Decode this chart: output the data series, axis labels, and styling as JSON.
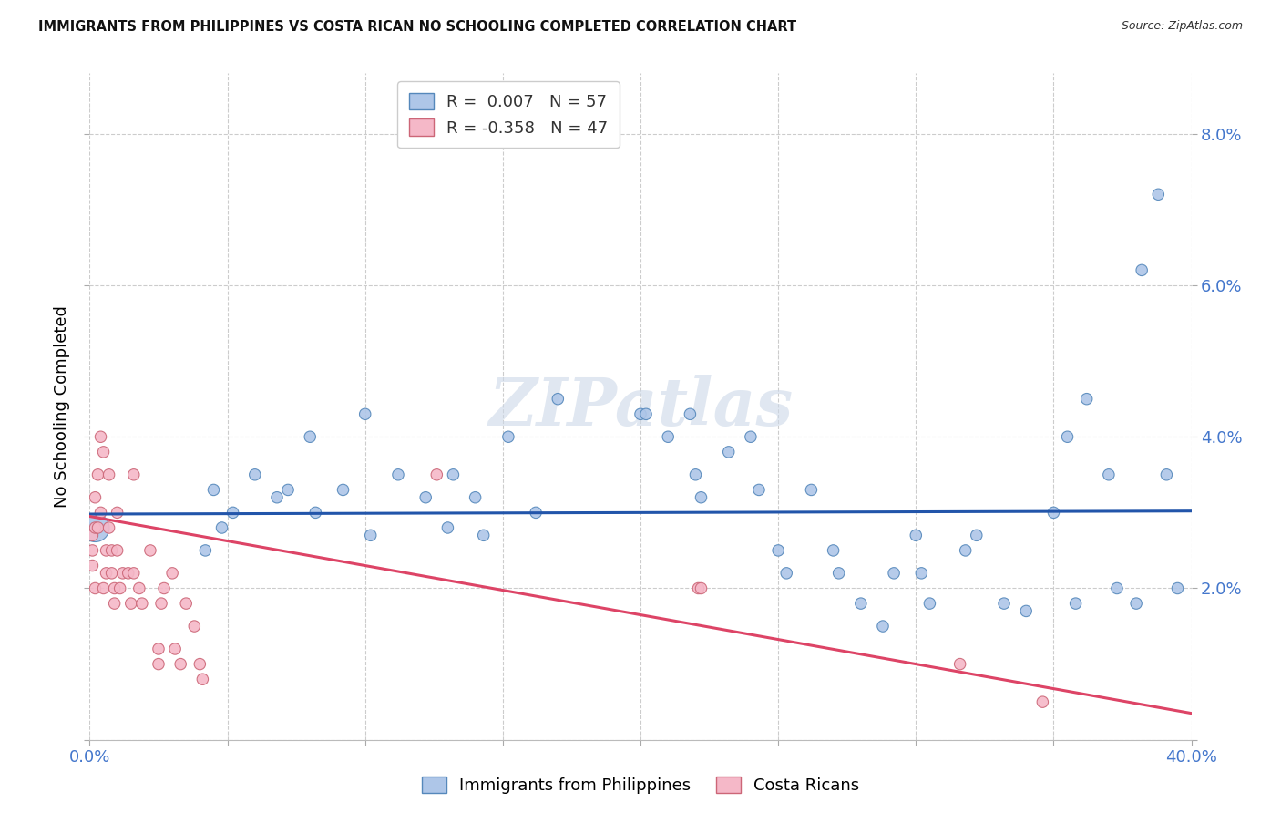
{
  "title": "IMMIGRANTS FROM PHILIPPINES VS COSTA RICAN NO SCHOOLING COMPLETED CORRELATION CHART",
  "source": "Source: ZipAtlas.com",
  "ylabel": "No Schooling Completed",
  "xlim": [
    0.0,
    0.4
  ],
  "ylim": [
    0.0,
    0.088
  ],
  "xticks": [
    0.0,
    0.05,
    0.1,
    0.15,
    0.2,
    0.25,
    0.3,
    0.35,
    0.4
  ],
  "yticks": [
    0.0,
    0.02,
    0.04,
    0.06,
    0.08
  ],
  "blue_R": 0.007,
  "blue_N": 57,
  "pink_R": -0.358,
  "pink_N": 47,
  "blue_color": "#aec6e8",
  "pink_color": "#f5b8c8",
  "blue_edge_color": "#5588bb",
  "pink_edge_color": "#cc6677",
  "blue_line_color": "#2255aa",
  "pink_line_color": "#dd4466",
  "axis_color": "#4477cc",
  "watermark": "ZIPatlas",
  "blue_scatter_x": [
    0.002,
    0.042,
    0.045,
    0.048,
    0.052,
    0.06,
    0.068,
    0.072,
    0.08,
    0.082,
    0.092,
    0.1,
    0.102,
    0.112,
    0.122,
    0.13,
    0.132,
    0.14,
    0.143,
    0.152,
    0.162,
    0.17,
    0.2,
    0.202,
    0.21,
    0.218,
    0.22,
    0.222,
    0.232,
    0.24,
    0.243,
    0.25,
    0.253,
    0.262,
    0.27,
    0.272,
    0.28,
    0.288,
    0.292,
    0.3,
    0.302,
    0.305,
    0.318,
    0.322,
    0.332,
    0.34,
    0.35,
    0.358,
    0.362,
    0.37,
    0.373,
    0.38,
    0.382,
    0.388,
    0.391,
    0.395,
    0.355
  ],
  "blue_scatter_y": [
    0.028,
    0.025,
    0.033,
    0.028,
    0.03,
    0.035,
    0.032,
    0.033,
    0.04,
    0.03,
    0.033,
    0.043,
    0.027,
    0.035,
    0.032,
    0.028,
    0.035,
    0.032,
    0.027,
    0.04,
    0.03,
    0.045,
    0.043,
    0.043,
    0.04,
    0.043,
    0.035,
    0.032,
    0.038,
    0.04,
    0.033,
    0.025,
    0.022,
    0.033,
    0.025,
    0.022,
    0.018,
    0.015,
    0.022,
    0.027,
    0.022,
    0.018,
    0.025,
    0.027,
    0.018,
    0.017,
    0.03,
    0.018,
    0.045,
    0.035,
    0.02,
    0.018,
    0.062,
    0.072,
    0.035,
    0.02,
    0.04
  ],
  "blue_scatter_sizes": [
    500,
    80,
    80,
    80,
    80,
    80,
    80,
    80,
    80,
    80,
    80,
    80,
    80,
    80,
    80,
    80,
    80,
    80,
    80,
    80,
    80,
    80,
    80,
    80,
    80,
    80,
    80,
    80,
    80,
    80,
    80,
    80,
    80,
    80,
    80,
    80,
    80,
    80,
    80,
    80,
    80,
    80,
    80,
    80,
    80,
    80,
    80,
    80,
    80,
    80,
    80,
    80,
    80,
    80,
    80,
    80,
    80
  ],
  "pink_scatter_x": [
    0.001,
    0.001,
    0.001,
    0.002,
    0.002,
    0.002,
    0.003,
    0.003,
    0.004,
    0.004,
    0.005,
    0.005,
    0.006,
    0.006,
    0.007,
    0.007,
    0.008,
    0.008,
    0.009,
    0.009,
    0.01,
    0.01,
    0.011,
    0.012,
    0.014,
    0.015,
    0.016,
    0.016,
    0.018,
    0.019,
    0.022,
    0.025,
    0.025,
    0.026,
    0.027,
    0.03,
    0.031,
    0.033,
    0.035,
    0.038,
    0.04,
    0.041,
    0.126,
    0.221,
    0.222,
    0.316,
    0.346
  ],
  "pink_scatter_y": [
    0.025,
    0.027,
    0.023,
    0.032,
    0.028,
    0.02,
    0.035,
    0.028,
    0.04,
    0.03,
    0.038,
    0.02,
    0.025,
    0.022,
    0.035,
    0.028,
    0.025,
    0.022,
    0.02,
    0.018,
    0.03,
    0.025,
    0.02,
    0.022,
    0.022,
    0.018,
    0.022,
    0.035,
    0.02,
    0.018,
    0.025,
    0.01,
    0.012,
    0.018,
    0.02,
    0.022,
    0.012,
    0.01,
    0.018,
    0.015,
    0.01,
    0.008,
    0.035,
    0.02,
    0.02,
    0.01,
    0.005
  ],
  "pink_scatter_sizes": [
    80,
    80,
    80,
    80,
    80,
    80,
    80,
    80,
    80,
    80,
    80,
    80,
    80,
    80,
    80,
    80,
    80,
    80,
    80,
    80,
    80,
    80,
    80,
    80,
    80,
    80,
    80,
    80,
    80,
    80,
    80,
    80,
    80,
    80,
    80,
    80,
    80,
    80,
    80,
    80,
    80,
    80,
    80,
    80,
    80,
    80,
    80
  ],
  "blue_trend_x": [
    0.0,
    0.4
  ],
  "blue_trend_y": [
    0.0298,
    0.0302
  ],
  "pink_trend_x": [
    0.0,
    0.4
  ],
  "pink_trend_y": [
    0.0295,
    0.0035
  ]
}
